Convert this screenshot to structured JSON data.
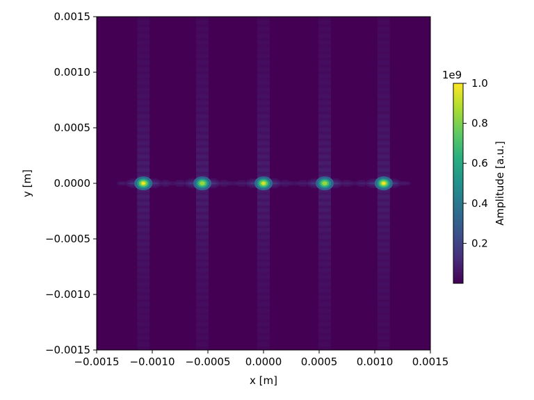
{
  "chart_data": {
    "type": "heatmap",
    "title": "",
    "xlabel": "x [m]",
    "ylabel": "y [m]",
    "xlim": [
      -0.0015,
      0.0015
    ],
    "ylim": [
      -0.0015,
      0.0015
    ],
    "x_ticks": [
      -0.0015,
      -0.001,
      -0.0005,
      0.0,
      0.0005,
      0.001,
      0.0015
    ],
    "y_ticks": [
      -0.0015,
      -0.001,
      -0.0005,
      0.0,
      0.0005,
      0.001,
      0.0015
    ],
    "x_tick_labels": [
      "−0.0015",
      "−0.0010",
      "−0.0005",
      "0.0000",
      "0.0005",
      "0.0010",
      "0.0015"
    ],
    "y_tick_labels": [
      "−0.0015",
      "−0.0010",
      "−0.0005",
      "0.0000",
      "0.0005",
      "0.0010",
      "0.0015"
    ],
    "colormap": "viridis",
    "colorbar": {
      "label": "Amplitude [a.u.]",
      "offset_text": "1e9",
      "range": [
        0.0,
        1.0
      ],
      "ticks": [
        0.2,
        0.4,
        0.6,
        0.8,
        1.0
      ],
      "tick_labels": [
        "0.2",
        "0.4",
        "0.6",
        "0.8",
        "1.0"
      ]
    },
    "grid": false,
    "background_value": 0.0,
    "peaks": [
      {
        "x": -0.00108,
        "y": 0.0,
        "amplitude": 1.0
      },
      {
        "x": -0.00055,
        "y": 0.0,
        "amplitude": 0.92
      },
      {
        "x": 0.0,
        "y": 0.0,
        "amplitude": 0.97
      },
      {
        "x": 0.00055,
        "y": 0.0,
        "amplitude": 0.92
      },
      {
        "x": 0.00108,
        "y": 0.0,
        "amplitude": 1.0
      }
    ],
    "colors": {
      "viridis_low": "#440154",
      "viridis_high": "#fde725"
    }
  }
}
